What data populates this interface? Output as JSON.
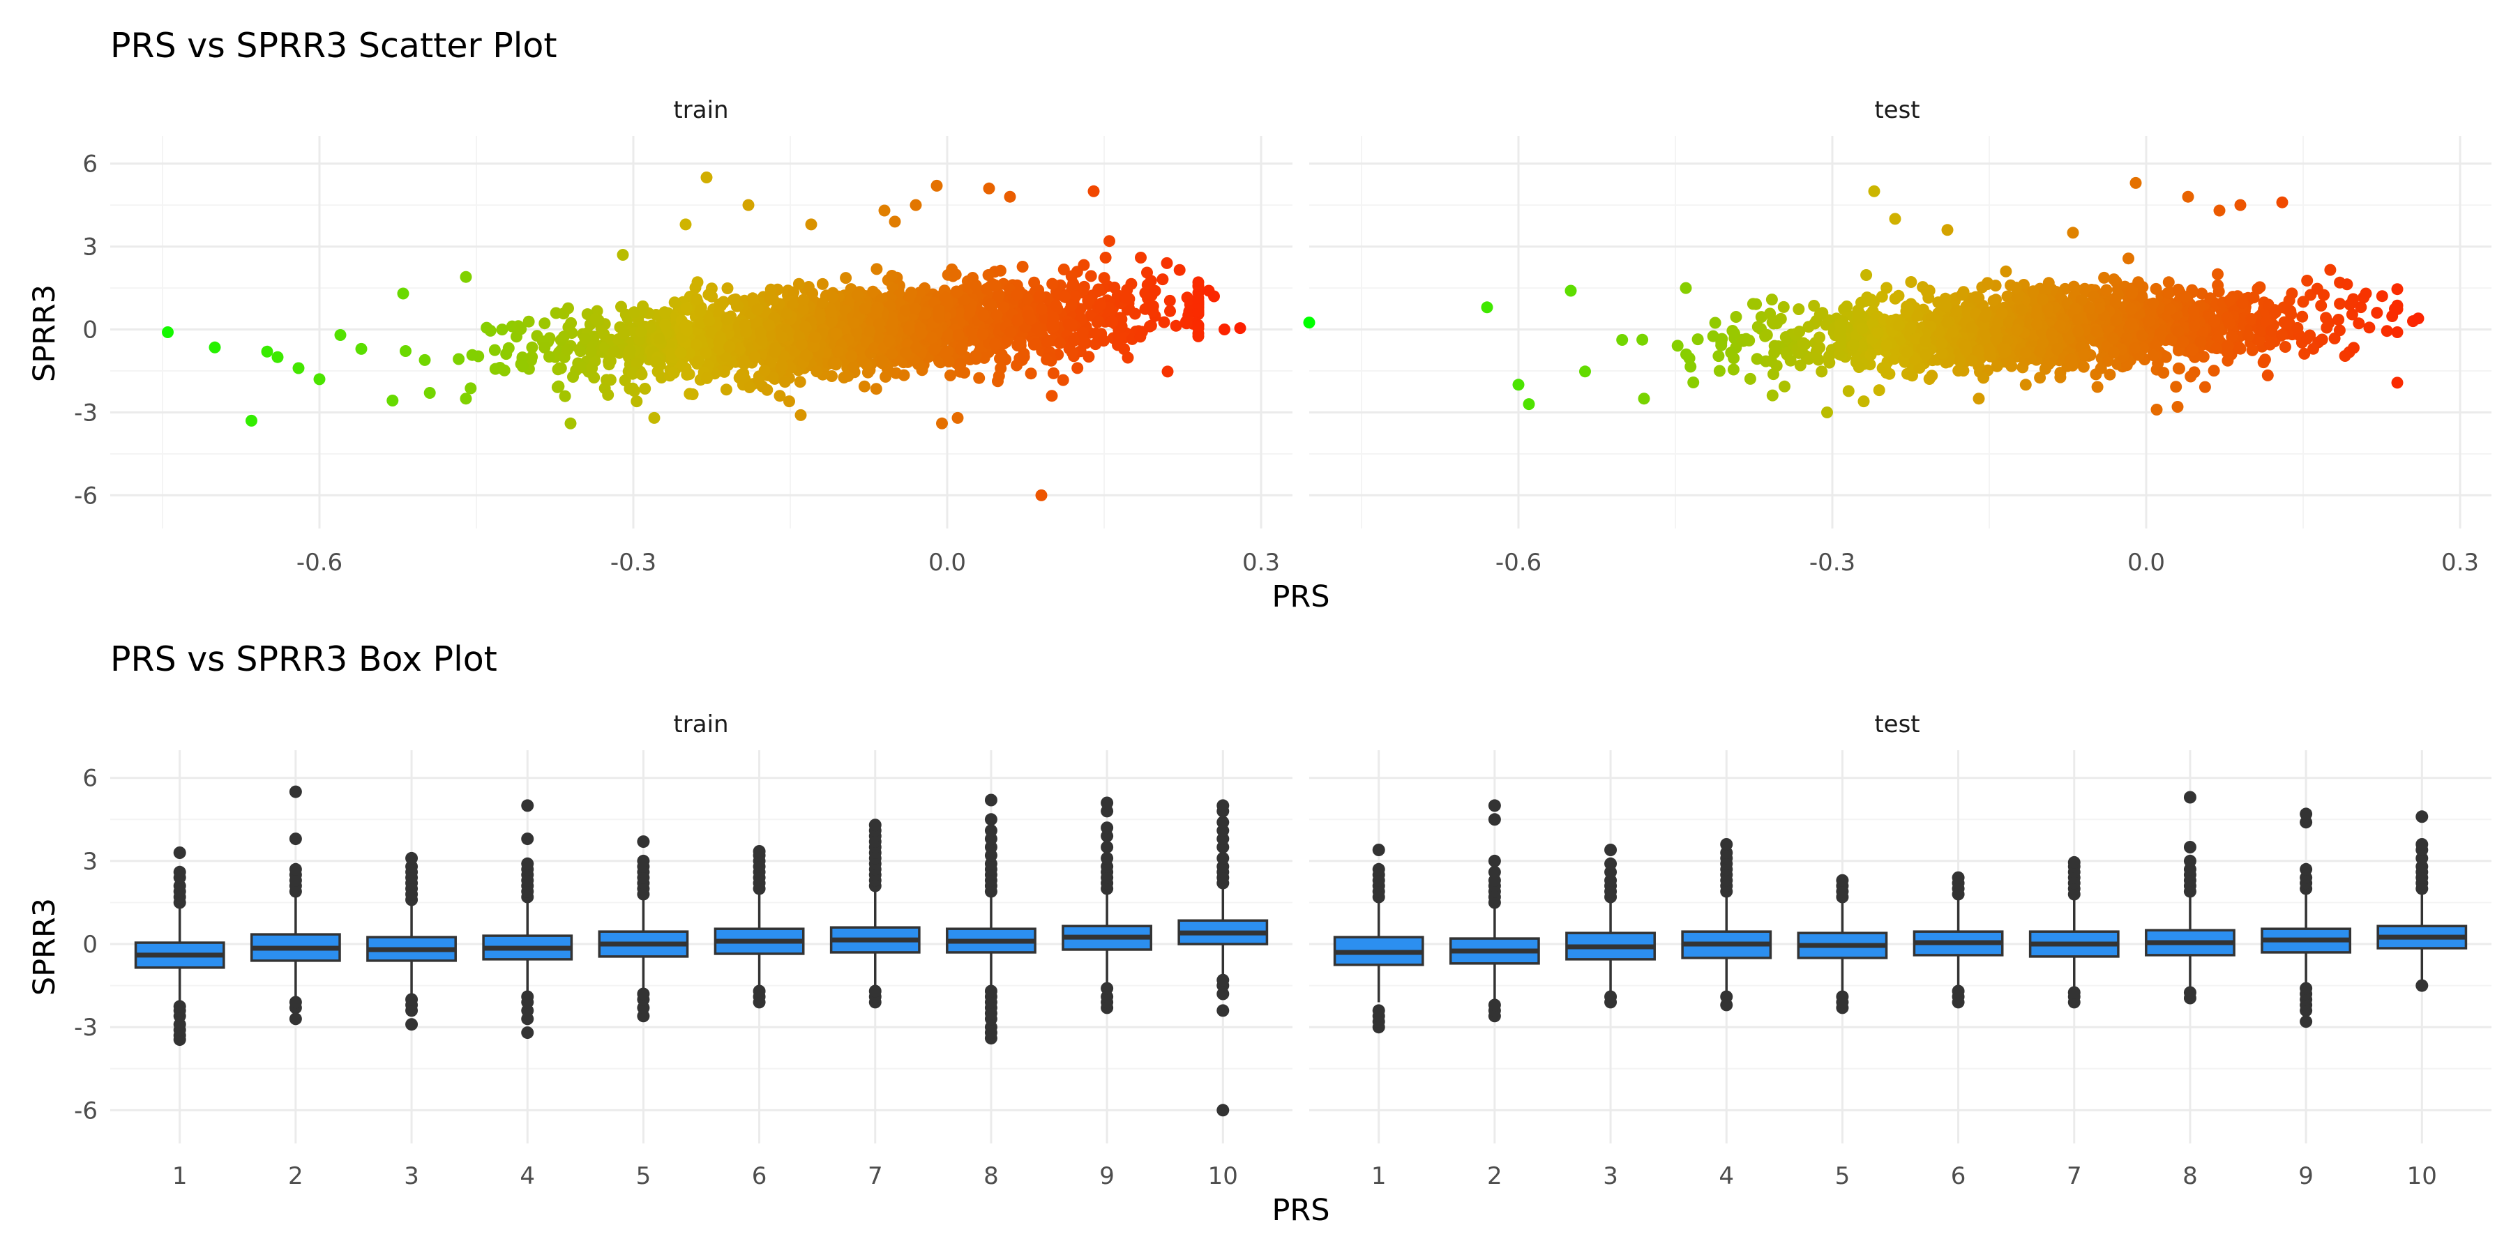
{
  "chart_data": [
    {
      "type": "scatter",
      "title": "PRS vs SPRR3 Scatter Plot",
      "xlabel": "PRS",
      "ylabel": "SPRR3",
      "xlim": [
        -0.8,
        0.33
      ],
      "ylim": [
        -7.2,
        7
      ],
      "x_ticks": [
        -0.6,
        -0.3,
        0.0,
        0.3
      ],
      "x_tick_labels": [
        "-0.6",
        "-0.3",
        "0.0",
        "0.3"
      ],
      "y_ticks": [
        -6,
        -3,
        0,
        3,
        6
      ],
      "y_tick_labels": [
        "-6",
        "-3",
        "0",
        "3",
        "6"
      ],
      "grid": true,
      "legend": "none",
      "color_scale": {
        "low": "#00ff00",
        "mid": "#cfb400",
        "high": "#ff1a00",
        "low_value": -0.8,
        "high_value": 0.3
      },
      "facets": [
        {
          "label": "train",
          "density": {
            "x_mean": -0.08,
            "x_sd": 0.14,
            "slope": 2.2,
            "y_sd": 0.75,
            "n": 2200
          },
          "outliers": [
            {
              "x": -0.745,
              "y": -0.1
            },
            {
              "x": -0.7,
              "y": -0.65
            },
            {
              "x": -0.665,
              "y": -3.3
            },
            {
              "x": -0.65,
              "y": -0.8
            },
            {
              "x": -0.64,
              "y": -1.0
            },
            {
              "x": -0.62,
              "y": -1.4
            },
            {
              "x": -0.6,
              "y": -1.8
            },
            {
              "x": -0.58,
              "y": -0.2
            },
            {
              "x": -0.52,
              "y": 1.3
            },
            {
              "x": -0.46,
              "y": 1.9
            },
            {
              "x": -0.46,
              "y": -2.5
            },
            {
              "x": -0.36,
              "y": -3.4
            },
            {
              "x": -0.31,
              "y": 2.7
            },
            {
              "x": -0.28,
              "y": -3.2
            },
            {
              "x": -0.25,
              "y": 3.8
            },
            {
              "x": -0.23,
              "y": 5.5
            },
            {
              "x": -0.19,
              "y": 4.5
            },
            {
              "x": -0.16,
              "y": -2.4
            },
            {
              "x": -0.14,
              "y": -3.1
            },
            {
              "x": -0.13,
              "y": 3.8
            },
            {
              "x": -0.06,
              "y": 4.3
            },
            {
              "x": -0.05,
              "y": 3.9
            },
            {
              "x": -0.03,
              "y": 4.5
            },
            {
              "x": -0.01,
              "y": 5.2
            },
            {
              "x": -0.005,
              "y": -3.4
            },
            {
              "x": 0.01,
              "y": -3.2
            },
            {
              "x": 0.04,
              "y": 5.1
            },
            {
              "x": 0.06,
              "y": 4.8
            },
            {
              "x": 0.09,
              "y": -6.0
            },
            {
              "x": 0.1,
              "y": -2.4
            },
            {
              "x": 0.14,
              "y": 5.0
            },
            {
              "x": 0.155,
              "y": 3.2
            },
            {
              "x": 0.185,
              "y": 2.6
            },
            {
              "x": 0.21,
              "y": 2.4
            },
            {
              "x": 0.25,
              "y": 1.4
            },
            {
              "x": 0.255,
              "y": 1.2
            },
            {
              "x": 0.265,
              "y": 0.0
            },
            {
              "x": 0.28,
              "y": 0.05
            }
          ]
        },
        {
          "label": "test",
          "density": {
            "x_mean": -0.1,
            "x_sd": 0.13,
            "slope": 1.2,
            "y_sd": 0.7,
            "n": 1600
          },
          "outliers": [
            {
              "x": -0.8,
              "y": 0.25
            },
            {
              "x": -0.63,
              "y": 0.8
            },
            {
              "x": -0.6,
              "y": -2.0
            },
            {
              "x": -0.59,
              "y": -2.7
            },
            {
              "x": -0.55,
              "y": 1.4
            },
            {
              "x": -0.48,
              "y": -2.5
            },
            {
              "x": -0.44,
              "y": 1.5
            },
            {
              "x": -0.305,
              "y": -3.0
            },
            {
              "x": -0.27,
              "y": -2.6
            },
            {
              "x": -0.26,
              "y": 5.0
            },
            {
              "x": -0.24,
              "y": 4.0
            },
            {
              "x": -0.19,
              "y": 3.6
            },
            {
              "x": -0.16,
              "y": -2.5
            },
            {
              "x": -0.07,
              "y": 3.5
            },
            {
              "x": -0.01,
              "y": 5.3
            },
            {
              "x": 0.01,
              "y": -2.9
            },
            {
              "x": 0.03,
              "y": -2.8
            },
            {
              "x": 0.04,
              "y": 4.8
            },
            {
              "x": 0.07,
              "y": 4.3
            },
            {
              "x": 0.09,
              "y": 4.5
            },
            {
              "x": 0.13,
              "y": 4.6
            },
            {
              "x": 0.15,
              "y": 1.0
            },
            {
              "x": 0.21,
              "y": 1.3
            },
            {
              "x": 0.24,
              "y": -0.1
            },
            {
              "x": 0.255,
              "y": 0.3
            },
            {
              "x": 0.26,
              "y": 0.4
            }
          ]
        }
      ]
    },
    {
      "type": "box",
      "title": "PRS vs SPRR3 Box Plot",
      "xlabel": "PRS",
      "ylabel": "SPRR3",
      "ylim": [
        -7.2,
        7
      ],
      "y_ticks": [
        -6,
        -3,
        0,
        3,
        6
      ],
      "y_tick_labels": [
        "-6",
        "-3",
        "0",
        "3",
        "6"
      ],
      "categories": [
        "1",
        "2",
        "3",
        "4",
        "5",
        "6",
        "7",
        "8",
        "9",
        "10"
      ],
      "box_color": "#2c8ff0",
      "grid": true,
      "legend": "none",
      "facets": [
        {
          "label": "train",
          "boxes": [
            {
              "q1": -0.85,
              "median": -0.4,
              "q3": 0.05,
              "low": -2.1,
              "high": 1.4,
              "outliers": [
                -3.45,
                -3.3,
                -3.1,
                -2.9,
                -2.6,
                -2.4,
                -2.25,
                1.5,
                1.7,
                1.9,
                2.1,
                2.4,
                2.6,
                3.3
              ]
            },
            {
              "q1": -0.6,
              "median": -0.15,
              "q3": 0.35,
              "low": -1.9,
              "high": 1.8,
              "outliers": [
                -2.7,
                -2.3,
                -2.1,
                1.9,
                2.1,
                2.3,
                2.5,
                2.7,
                3.8,
                5.5
              ]
            },
            {
              "q1": -0.6,
              "median": -0.2,
              "q3": 0.25,
              "low": -1.85,
              "high": 1.5,
              "outliers": [
                -2.9,
                -2.4,
                -2.2,
                -2.0,
                1.6,
                1.8,
                2.0,
                2.2,
                2.4,
                2.6,
                2.8,
                3.1
              ]
            },
            {
              "q1": -0.55,
              "median": -0.15,
              "q3": 0.3,
              "low": -1.8,
              "high": 1.6,
              "outliers": [
                -3.2,
                -2.7,
                -2.4,
                -2.1,
                -1.9,
                1.7,
                1.9,
                2.1,
                2.3,
                2.5,
                2.7,
                2.9,
                3.8,
                5.0
              ]
            },
            {
              "q1": -0.45,
              "median": 0.0,
              "q3": 0.45,
              "low": -1.7,
              "high": 1.7,
              "outliers": [
                -2.6,
                -2.3,
                -2.0,
                -1.8,
                1.8,
                2.0,
                2.2,
                2.4,
                2.6,
                2.8,
                3.0,
                3.7
              ]
            },
            {
              "q1": -0.35,
              "median": 0.1,
              "q3": 0.55,
              "low": -1.6,
              "high": 1.9,
              "outliers": [
                -2.1,
                -1.9,
                -1.7,
                2.0,
                2.2,
                2.4,
                2.6,
                2.8,
                3.0,
                3.2,
                3.35
              ]
            },
            {
              "q1": -0.3,
              "median": 0.15,
              "q3": 0.6,
              "low": -1.6,
              "high": 2.0,
              "outliers": [
                -2.1,
                -1.9,
                -1.7,
                2.1,
                2.3,
                2.5,
                2.7,
                2.9,
                3.1,
                3.3,
                3.5,
                3.7,
                3.9,
                4.1,
                4.3
              ]
            },
            {
              "q1": -0.3,
              "median": 0.1,
              "q3": 0.55,
              "low": -1.6,
              "high": 1.8,
              "outliers": [
                -3.4,
                -3.2,
                -3.0,
                -2.7,
                -2.5,
                -2.3,
                -2.1,
                -1.9,
                -1.7,
                1.9,
                2.1,
                2.3,
                2.5,
                2.7,
                2.9,
                3.2,
                3.5,
                3.8,
                4.1,
                4.5,
                5.2
              ]
            },
            {
              "q1": -0.2,
              "median": 0.25,
              "q3": 0.65,
              "low": -1.5,
              "high": 1.9,
              "outliers": [
                -2.3,
                -2.1,
                -1.9,
                -1.6,
                2.0,
                2.2,
                2.4,
                2.6,
                2.8,
                3.1,
                3.5,
                3.9,
                4.2,
                4.8,
                5.1
              ]
            },
            {
              "q1": 0.0,
              "median": 0.4,
              "q3": 0.85,
              "low": -1.2,
              "high": 2.1,
              "outliers": [
                -6.0,
                -2.4,
                -1.8,
                -1.5,
                -1.3,
                2.2,
                2.4,
                2.6,
                2.8,
                3.1,
                3.5,
                3.8,
                4.1,
                4.4,
                4.8,
                5.0
              ]
            }
          ]
        },
        {
          "label": "test",
          "boxes": [
            {
              "q1": -0.75,
              "median": -0.3,
              "q3": 0.25,
              "low": -2.1,
              "high": 1.6,
              "outliers": [
                -3.0,
                -2.8,
                -2.6,
                -2.4,
                1.7,
                1.9,
                2.1,
                2.3,
                2.5,
                2.7,
                3.4
              ]
            },
            {
              "q1": -0.7,
              "median": -0.25,
              "q3": 0.2,
              "low": -2.0,
              "high": 1.4,
              "outliers": [
                -2.6,
                -2.4,
                -2.2,
                1.5,
                1.7,
                1.9,
                2.1,
                2.3,
                2.6,
                3.0,
                4.5,
                5.0
              ]
            },
            {
              "q1": -0.55,
              "median": -0.1,
              "q3": 0.4,
              "low": -1.8,
              "high": 1.6,
              "outliers": [
                -2.1,
                -1.9,
                1.7,
                1.9,
                2.1,
                2.3,
                2.6,
                2.9,
                3.4
              ]
            },
            {
              "q1": -0.5,
              "median": 0.0,
              "q3": 0.45,
              "low": -1.8,
              "high": 1.8,
              "outliers": [
                -2.2,
                -1.9,
                1.9,
                2.1,
                2.3,
                2.5,
                2.7,
                2.9,
                3.1,
                3.3,
                3.6
              ]
            },
            {
              "q1": -0.5,
              "median": -0.05,
              "q3": 0.4,
              "low": -1.7,
              "high": 1.6,
              "outliers": [
                -2.3,
                -2.1,
                -1.9,
                1.7,
                1.9,
                2.1,
                2.3
              ]
            },
            {
              "q1": -0.4,
              "median": 0.05,
              "q3": 0.45,
              "low": -1.6,
              "high": 1.7,
              "outliers": [
                -2.1,
                -1.9,
                -1.7,
                1.8,
                2.0,
                2.2,
                2.4
              ]
            },
            {
              "q1": -0.45,
              "median": 0.0,
              "q3": 0.45,
              "low": -1.7,
              "high": 1.7,
              "outliers": [
                -2.1,
                -1.9,
                -1.75,
                1.8,
                2.0,
                2.2,
                2.4,
                2.6,
                2.8,
                2.95
              ]
            },
            {
              "q1": -0.4,
              "median": 0.05,
              "q3": 0.5,
              "low": -1.6,
              "high": 1.8,
              "outliers": [
                -1.95,
                -1.75,
                1.9,
                2.1,
                2.3,
                2.5,
                2.7,
                3.0,
                3.5,
                5.3
              ]
            },
            {
              "q1": -0.3,
              "median": 0.15,
              "q3": 0.55,
              "low": -1.5,
              "high": 1.9,
              "outliers": [
                -2.8,
                -2.4,
                -2.2,
                -2.0,
                -1.8,
                -1.6,
                2.0,
                2.2,
                2.4,
                2.7,
                4.4,
                4.7
              ]
            },
            {
              "q1": -0.15,
              "median": 0.25,
              "q3": 0.65,
              "low": -1.3,
              "high": 1.9,
              "outliers": [
                -1.5,
                2.0,
                2.2,
                2.4,
                2.6,
                2.8,
                3.1,
                3.4,
                3.6,
                4.6
              ]
            }
          ]
        }
      ]
    }
  ]
}
